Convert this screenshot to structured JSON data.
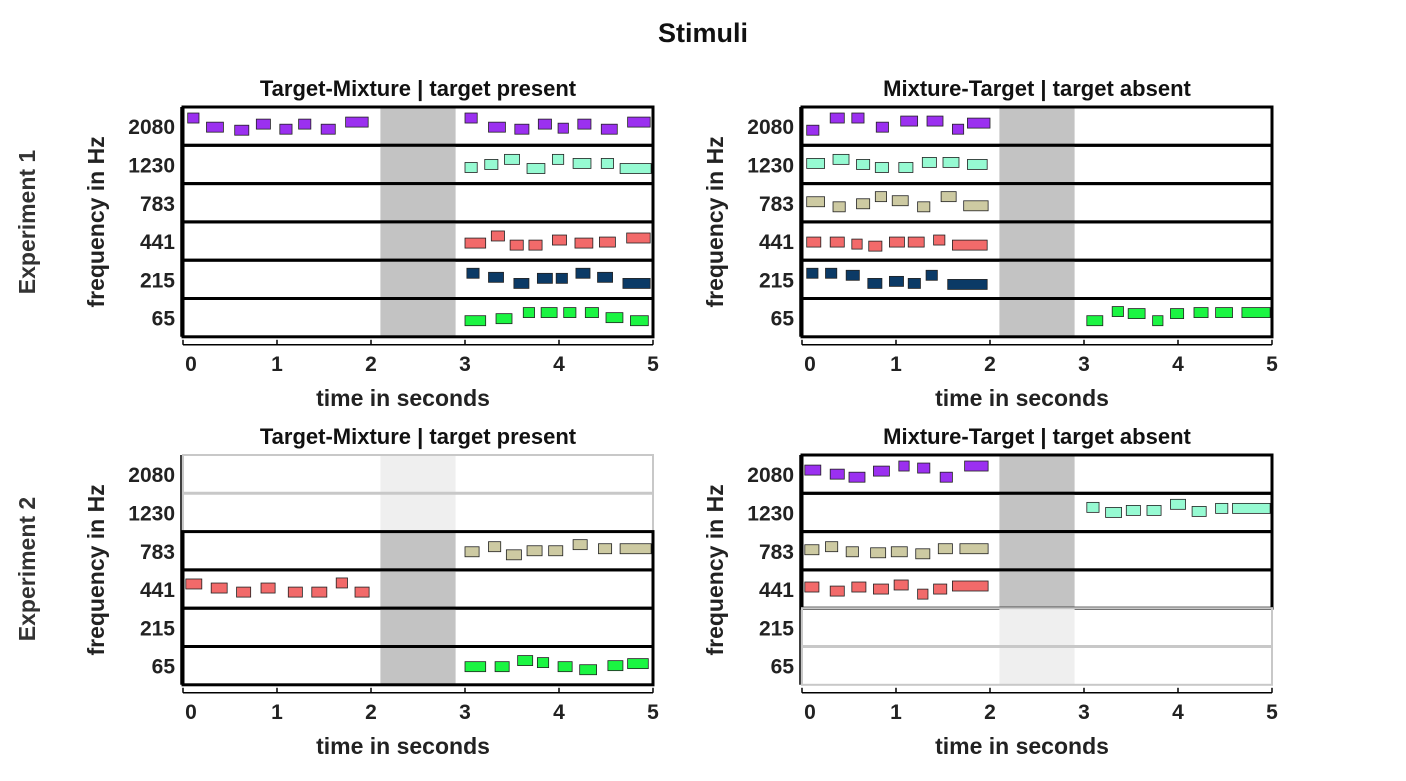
{
  "figure": {
    "title": "Stimuli",
    "row_labels": [
      "Experiment 1",
      "Experiment 2"
    ],
    "xlabel": "time in seconds",
    "ylabel": "frequency in Hz",
    "x_ticks": [
      "0",
      "1",
      "2",
      "3",
      "4",
      "5"
    ],
    "band_labels": [
      "2080",
      "1230",
      "783",
      "441",
      "215",
      "65"
    ]
  },
  "colors": {
    "band_2080": "#9b30f0",
    "band_1230": "#96fad2",
    "band_783": "#cdcaa2",
    "band_441": "#f26a6a",
    "band_215": "#0b3a66",
    "band_65": "#1bf542",
    "gap_shade": "#c3c3c3",
    "inactive_border": "#c8c8c8"
  },
  "chart_data": [
    {
      "type": "stimulus-raster",
      "panel_title": "Target-Mixture | target present",
      "experiment": "Experiment 1",
      "xlim": [
        0,
        5
      ],
      "gap": [
        2.1,
        2.9
      ],
      "inactive_bands": [],
      "tones": {
        "2080": [
          [
            0.05,
            0.17,
            0.9
          ],
          [
            0.25,
            0.43,
            0.45
          ],
          [
            0.55,
            0.7,
            0.3
          ],
          [
            0.78,
            0.93,
            0.6
          ],
          [
            1.03,
            1.16,
            0.35
          ],
          [
            1.23,
            1.36,
            0.6
          ],
          [
            1.47,
            1.62,
            0.35
          ],
          [
            1.73,
            1.97,
            0.7
          ],
          [
            3.0,
            3.13,
            0.9
          ],
          [
            3.25,
            3.43,
            0.45
          ],
          [
            3.53,
            3.68,
            0.35
          ],
          [
            3.78,
            3.92,
            0.6
          ],
          [
            3.99,
            4.1,
            0.4
          ],
          [
            4.2,
            4.34,
            0.6
          ],
          [
            4.45,
            4.62,
            0.35
          ],
          [
            4.73,
            4.97,
            0.7
          ]
        ],
        "1230": [
          [
            3.0,
            3.13,
            0.35
          ],
          [
            3.21,
            3.35,
            0.5
          ],
          [
            3.42,
            3.58,
            0.75
          ],
          [
            3.66,
            3.85,
            0.3
          ],
          [
            3.93,
            4.05,
            0.75
          ],
          [
            4.15,
            4.34,
            0.55
          ],
          [
            4.45,
            4.58,
            0.55
          ],
          [
            4.65,
            4.98,
            0.3
          ]
        ],
        "783": [],
        "441": [
          [
            3.0,
            3.22,
            0.4
          ],
          [
            3.28,
            3.42,
            0.75
          ],
          [
            3.48,
            3.62,
            0.3
          ],
          [
            3.68,
            3.82,
            0.3
          ],
          [
            3.93,
            4.08,
            0.55
          ],
          [
            4.17,
            4.36,
            0.4
          ],
          [
            4.43,
            4.6,
            0.45
          ],
          [
            4.72,
            4.97,
            0.65
          ]
        ],
        "215": [
          [
            3.02,
            3.15,
            0.8
          ],
          [
            3.25,
            3.41,
            0.6
          ],
          [
            3.52,
            3.68,
            0.3
          ],
          [
            3.77,
            3.93,
            0.55
          ],
          [
            3.97,
            4.09,
            0.55
          ],
          [
            4.18,
            4.33,
            0.8
          ],
          [
            4.41,
            4.57,
            0.6
          ],
          [
            4.68,
            4.97,
            0.3
          ]
        ],
        "65": [
          [
            3.0,
            3.22,
            0.35
          ],
          [
            3.33,
            3.5,
            0.45
          ],
          [
            3.62,
            3.74,
            0.75
          ],
          [
            3.81,
            3.98,
            0.75
          ],
          [
            4.05,
            4.18,
            0.75
          ],
          [
            4.28,
            4.42,
            0.75
          ],
          [
            4.5,
            4.68,
            0.5
          ],
          [
            4.76,
            4.95,
            0.35
          ]
        ]
      }
    },
    {
      "type": "stimulus-raster",
      "panel_title": "Mixture-Target | target absent",
      "experiment": "Experiment 1",
      "xlim": [
        0,
        5
      ],
      "gap": [
        2.1,
        2.9
      ],
      "inactive_bands": [],
      "tones": {
        "2080": [
          [
            0.05,
            0.18,
            0.3
          ],
          [
            0.3,
            0.45,
            0.9
          ],
          [
            0.53,
            0.66,
            0.9
          ],
          [
            0.79,
            0.92,
            0.45
          ],
          [
            1.05,
            1.23,
            0.75
          ],
          [
            1.33,
            1.5,
            0.75
          ],
          [
            1.6,
            1.72,
            0.35
          ],
          [
            1.76,
            2.0,
            0.65
          ]
        ],
        "1230": [
          [
            0.05,
            0.24,
            0.55
          ],
          [
            0.33,
            0.5,
            0.75
          ],
          [
            0.58,
            0.72,
            0.5
          ],
          [
            0.78,
            0.92,
            0.35
          ],
          [
            1.03,
            1.18,
            0.35
          ],
          [
            1.28,
            1.43,
            0.6
          ],
          [
            1.5,
            1.67,
            0.6
          ],
          [
            1.76,
            1.97,
            0.5
          ]
        ],
        "783": [
          [
            0.05,
            0.24,
            0.55
          ],
          [
            0.33,
            0.46,
            0.3
          ],
          [
            0.58,
            0.72,
            0.45
          ],
          [
            0.78,
            0.9,
            0.8
          ],
          [
            0.96,
            1.13,
            0.6
          ],
          [
            1.23,
            1.36,
            0.3
          ],
          [
            1.48,
            1.64,
            0.8
          ],
          [
            1.72,
            1.98,
            0.35
          ]
        ],
        "441": [
          [
            0.05,
            0.2,
            0.45
          ],
          [
            0.3,
            0.45,
            0.45
          ],
          [
            0.53,
            0.64,
            0.35
          ],
          [
            0.71,
            0.85,
            0.25
          ],
          [
            0.93,
            1.09,
            0.45
          ],
          [
            1.13,
            1.3,
            0.45
          ],
          [
            1.4,
            1.52,
            0.55
          ],
          [
            1.6,
            1.97,
            0.3
          ]
        ],
        "215": [
          [
            0.05,
            0.17,
            0.8
          ],
          [
            0.25,
            0.37,
            0.8
          ],
          [
            0.47,
            0.61,
            0.7
          ],
          [
            0.7,
            0.85,
            0.3
          ],
          [
            0.93,
            1.08,
            0.4
          ],
          [
            1.13,
            1.26,
            0.3
          ],
          [
            1.32,
            1.44,
            0.7
          ],
          [
            1.55,
            1.97,
            0.25
          ]
        ],
        "65": [
          [
            3.03,
            3.2,
            0.35
          ],
          [
            3.3,
            3.42,
            0.8
          ],
          [
            3.47,
            3.65,
            0.7
          ],
          [
            3.73,
            3.84,
            0.35
          ],
          [
            3.92,
            4.06,
            0.7
          ],
          [
            4.17,
            4.32,
            0.75
          ],
          [
            4.4,
            4.58,
            0.75
          ],
          [
            4.68,
            4.98,
            0.75
          ]
        ]
      }
    },
    {
      "type": "stimulus-raster",
      "panel_title": "Target-Mixture | target present",
      "experiment": "Experiment 2",
      "xlim": [
        0,
        5
      ],
      "gap": [
        2.1,
        2.9
      ],
      "inactive_bands": [
        "2080",
        "1230"
      ],
      "tones": {
        "2080": [],
        "1230": [],
        "783": [
          [
            3.0,
            3.15,
            0.45
          ],
          [
            3.25,
            3.38,
            0.7
          ],
          [
            3.44,
            3.6,
            0.3
          ],
          [
            3.66,
            3.82,
            0.5
          ],
          [
            3.89,
            4.04,
            0.5
          ],
          [
            4.15,
            4.3,
            0.8
          ],
          [
            4.42,
            4.56,
            0.6
          ],
          [
            4.65,
            4.98,
            0.6
          ]
        ],
        "441": [
          [
            0.03,
            0.2,
            0.75
          ],
          [
            0.3,
            0.47,
            0.55
          ],
          [
            0.57,
            0.72,
            0.35
          ],
          [
            0.83,
            0.98,
            0.55
          ],
          [
            1.12,
            1.27,
            0.35
          ],
          [
            1.37,
            1.53,
            0.35
          ],
          [
            1.63,
            1.75,
            0.8
          ],
          [
            1.83,
            1.98,
            0.35
          ]
        ],
        "215": [],
        "65": [
          [
            3.0,
            3.22,
            0.45
          ],
          [
            3.32,
            3.47,
            0.45
          ],
          [
            3.56,
            3.72,
            0.75
          ],
          [
            3.77,
            3.89,
            0.65
          ],
          [
            3.99,
            4.14,
            0.45
          ],
          [
            4.22,
            4.4,
            0.3
          ],
          [
            4.52,
            4.68,
            0.5
          ],
          [
            4.73,
            4.95,
            0.6
          ]
        ]
      }
    },
    {
      "type": "stimulus-raster",
      "panel_title": "Mixture-Target | target absent",
      "experiment": "Experiment 2",
      "xlim": [
        0,
        5
      ],
      "gap": [
        2.1,
        2.9
      ],
      "inactive_bands": [
        "215",
        "65"
      ],
      "tones": {
        "2080": [
          [
            0.03,
            0.2,
            0.7
          ],
          [
            0.3,
            0.45,
            0.5
          ],
          [
            0.5,
            0.67,
            0.35
          ],
          [
            0.76,
            0.93,
            0.65
          ],
          [
            1.03,
            1.14,
            0.9
          ],
          [
            1.23,
            1.36,
            0.8
          ],
          [
            1.47,
            1.6,
            0.35
          ],
          [
            1.73,
            1.98,
            0.9
          ]
        ],
        "1230": [
          [
            3.03,
            3.16,
            0.75
          ],
          [
            3.23,
            3.4,
            0.5
          ],
          [
            3.45,
            3.6,
            0.6
          ],
          [
            3.67,
            3.82,
            0.6
          ],
          [
            3.92,
            4.08,
            0.9
          ],
          [
            4.15,
            4.3,
            0.55
          ],
          [
            4.4,
            4.53,
            0.7
          ],
          [
            4.58,
            4.98,
            0.7
          ]
        ],
        "783": [
          [
            0.03,
            0.18,
            0.55
          ],
          [
            0.25,
            0.38,
            0.7
          ],
          [
            0.47,
            0.6,
            0.45
          ],
          [
            0.73,
            0.89,
            0.4
          ],
          [
            0.95,
            1.12,
            0.45
          ],
          [
            1.21,
            1.36,
            0.35
          ],
          [
            1.45,
            1.6,
            0.6
          ],
          [
            1.68,
            1.98,
            0.6
          ]
        ],
        "441": [
          [
            0.03,
            0.18,
            0.6
          ],
          [
            0.3,
            0.45,
            0.4
          ],
          [
            0.53,
            0.68,
            0.6
          ],
          [
            0.76,
            0.92,
            0.5
          ],
          [
            0.98,
            1.13,
            0.7
          ],
          [
            1.23,
            1.34,
            0.25
          ],
          [
            1.4,
            1.54,
            0.5
          ],
          [
            1.6,
            1.98,
            0.65
          ]
        ],
        "215": [],
        "65": []
      }
    }
  ]
}
